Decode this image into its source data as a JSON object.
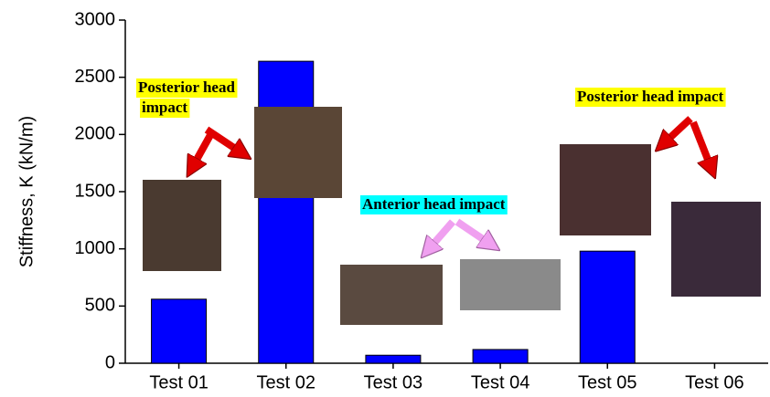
{
  "chart_data": {
    "type": "bar",
    "y_label": "Stiffness, K (kN/m)",
    "categories": [
      "Test 01",
      "Test 02",
      "Test 03",
      "Test 04",
      "Test 05",
      "Test 06"
    ],
    "values": [
      560,
      2640,
      70,
      120,
      980,
      null
    ],
    "color": "#0000ff",
    "ylim": [
      0,
      3000
    ],
    "yticks": [
      0,
      500,
      1000,
      1500,
      2000,
      2500,
      3000
    ],
    "annotations": [
      {
        "lines": [
          "Posterior head",
          "impact"
        ],
        "background": "#ffff00"
      },
      {
        "lines": [
          "Anterior head impact"
        ],
        "background": "#00ffff"
      },
      {
        "lines": [
          "Posterior head impact"
        ],
        "background": "#ffff00"
      }
    ]
  }
}
